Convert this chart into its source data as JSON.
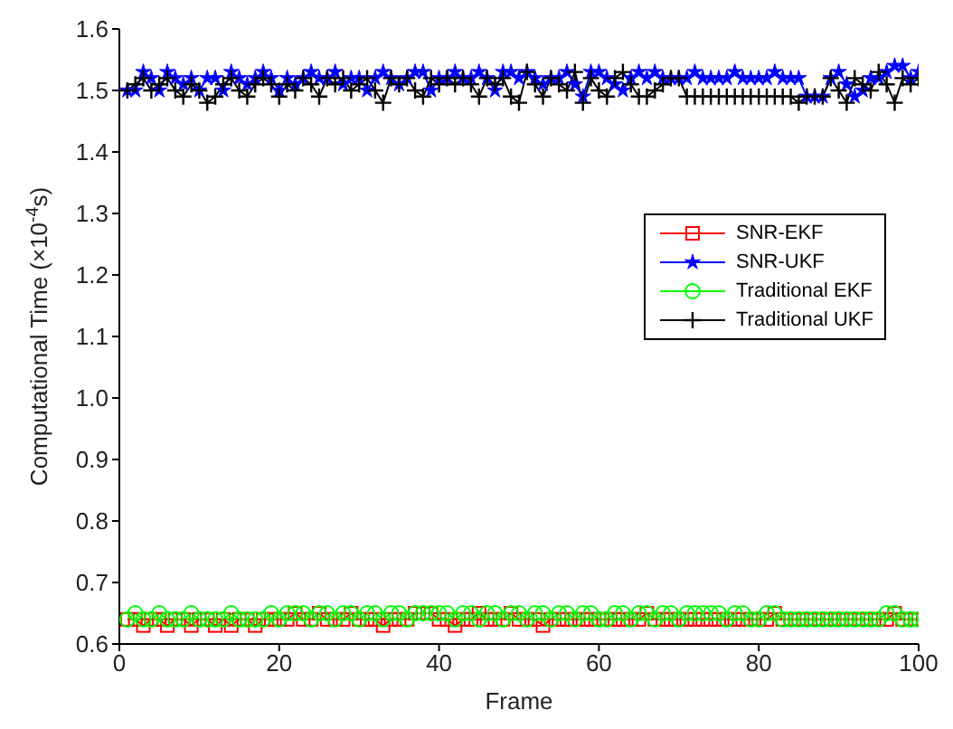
{
  "chart_data": {
    "type": "line",
    "xlabel": "Frame",
    "ylabel": "Computational Time  (×10$^{-4}$s)",
    "x": [
      1,
      2,
      3,
      4,
      5,
      6,
      7,
      8,
      9,
      10,
      11,
      12,
      13,
      14,
      15,
      16,
      17,
      18,
      19,
      20,
      21,
      22,
      23,
      24,
      25,
      26,
      27,
      28,
      29,
      30,
      31,
      32,
      33,
      34,
      35,
      36,
      37,
      38,
      39,
      40,
      41,
      42,
      43,
      44,
      45,
      46,
      47,
      48,
      49,
      50,
      51,
      52,
      53,
      54,
      55,
      56,
      57,
      58,
      59,
      60,
      61,
      62,
      63,
      64,
      65,
      66,
      67,
      68,
      69,
      70,
      71,
      72,
      73,
      74,
      75,
      76,
      77,
      78,
      79,
      80,
      81,
      82,
      83,
      84,
      85,
      86,
      87,
      88,
      89,
      90,
      91,
      92,
      93,
      94,
      95,
      96,
      97,
      98,
      99,
      100
    ],
    "series": [
      {
        "name": "SNR-EKF",
        "color": "#ff0000",
        "marker": "square",
        "values": [
          0.64,
          0.64,
          0.63,
          0.64,
          0.64,
          0.63,
          0.64,
          0.64,
          0.63,
          0.64,
          0.64,
          0.63,
          0.64,
          0.63,
          0.64,
          0.64,
          0.63,
          0.64,
          0.64,
          0.64,
          0.64,
          0.65,
          0.64,
          0.64,
          0.65,
          0.64,
          0.64,
          0.64,
          0.65,
          0.64,
          0.64,
          0.64,
          0.63,
          0.64,
          0.64,
          0.64,
          0.65,
          0.65,
          0.65,
          0.64,
          0.64,
          0.63,
          0.64,
          0.64,
          0.65,
          0.64,
          0.64,
          0.64,
          0.65,
          0.64,
          0.64,
          0.64,
          0.63,
          0.64,
          0.64,
          0.64,
          0.64,
          0.64,
          0.64,
          0.64,
          0.64,
          0.64,
          0.64,
          0.64,
          0.64,
          0.65,
          0.64,
          0.64,
          0.64,
          0.64,
          0.64,
          0.64,
          0.64,
          0.64,
          0.64,
          0.64,
          0.64,
          0.64,
          0.64,
          0.64,
          0.64,
          0.65,
          0.64,
          0.64,
          0.64,
          0.64,
          0.64,
          0.64,
          0.64,
          0.64,
          0.64,
          0.64,
          0.64,
          0.64,
          0.64,
          0.64,
          0.65,
          0.64,
          0.64,
          0.64
        ]
      },
      {
        "name": "SNR-UKF",
        "color": "#0000ff",
        "marker": "star",
        "values": [
          1.5,
          1.5,
          1.53,
          1.52,
          1.5,
          1.53,
          1.52,
          1.51,
          1.52,
          1.5,
          1.52,
          1.52,
          1.5,
          1.53,
          1.52,
          1.51,
          1.52,
          1.53,
          1.52,
          1.5,
          1.52,
          1.51,
          1.52,
          1.53,
          1.52,
          1.52,
          1.53,
          1.51,
          1.52,
          1.52,
          1.5,
          1.52,
          1.53,
          1.52,
          1.51,
          1.52,
          1.53,
          1.53,
          1.5,
          1.52,
          1.52,
          1.53,
          1.52,
          1.52,
          1.53,
          1.52,
          1.5,
          1.53,
          1.53,
          1.52,
          1.53,
          1.52,
          1.51,
          1.52,
          1.52,
          1.53,
          1.51,
          1.49,
          1.53,
          1.53,
          1.52,
          1.51,
          1.5,
          1.52,
          1.53,
          1.52,
          1.53,
          1.52,
          1.52,
          1.52,
          1.52,
          1.53,
          1.52,
          1.52,
          1.52,
          1.52,
          1.53,
          1.52,
          1.52,
          1.52,
          1.52,
          1.53,
          1.52,
          1.52,
          1.52,
          1.49,
          1.49,
          1.49,
          1.52,
          1.53,
          1.51,
          1.49,
          1.5,
          1.52,
          1.52,
          1.53,
          1.54,
          1.54,
          1.52,
          1.53
        ]
      },
      {
        "name": "Traditional EKF",
        "color": "#00ff00",
        "marker": "circle",
        "values": [
          0.64,
          0.65,
          0.64,
          0.64,
          0.65,
          0.64,
          0.64,
          0.64,
          0.65,
          0.64,
          0.64,
          0.64,
          0.64,
          0.65,
          0.64,
          0.64,
          0.64,
          0.64,
          0.65,
          0.64,
          0.65,
          0.65,
          0.65,
          0.64,
          0.65,
          0.65,
          0.64,
          0.65,
          0.65,
          0.64,
          0.65,
          0.65,
          0.64,
          0.65,
          0.65,
          0.64,
          0.65,
          0.65,
          0.65,
          0.65,
          0.65,
          0.64,
          0.65,
          0.65,
          0.64,
          0.65,
          0.65,
          0.64,
          0.65,
          0.65,
          0.64,
          0.65,
          0.65,
          0.64,
          0.65,
          0.65,
          0.64,
          0.65,
          0.65,
          0.64,
          0.64,
          0.65,
          0.65,
          0.64,
          0.65,
          0.65,
          0.64,
          0.65,
          0.65,
          0.64,
          0.65,
          0.65,
          0.65,
          0.65,
          0.65,
          0.64,
          0.65,
          0.65,
          0.64,
          0.64,
          0.65,
          0.65,
          0.64,
          0.64,
          0.64,
          0.64,
          0.64,
          0.64,
          0.64,
          0.64,
          0.64,
          0.64,
          0.64,
          0.64,
          0.64,
          0.65,
          0.65,
          0.64,
          0.64,
          0.64
        ]
      },
      {
        "name": "Traditional UKF",
        "color": "#000000",
        "marker": "cross",
        "values": [
          1.5,
          1.51,
          1.52,
          1.5,
          1.51,
          1.52,
          1.5,
          1.49,
          1.51,
          1.5,
          1.48,
          1.49,
          1.51,
          1.52,
          1.5,
          1.49,
          1.51,
          1.52,
          1.51,
          1.49,
          1.51,
          1.5,
          1.52,
          1.51,
          1.49,
          1.52,
          1.51,
          1.52,
          1.5,
          1.51,
          1.52,
          1.5,
          1.48,
          1.52,
          1.51,
          1.52,
          1.5,
          1.49,
          1.52,
          1.51,
          1.52,
          1.51,
          1.52,
          1.51,
          1.49,
          1.52,
          1.51,
          1.52,
          1.49,
          1.48,
          1.53,
          1.51,
          1.49,
          1.52,
          1.51,
          1.5,
          1.53,
          1.48,
          1.52,
          1.5,
          1.49,
          1.52,
          1.53,
          1.51,
          1.49,
          1.49,
          1.5,
          1.51,
          1.52,
          1.52,
          1.49,
          1.49,
          1.49,
          1.49,
          1.49,
          1.49,
          1.49,
          1.49,
          1.49,
          1.49,
          1.49,
          1.49,
          1.49,
          1.49,
          1.48,
          1.49,
          1.49,
          1.49,
          1.52,
          1.5,
          1.48,
          1.52,
          1.51,
          1.5,
          1.53,
          1.51,
          1.48,
          1.52,
          1.51,
          1.52
        ]
      }
    ],
    "xlim": [
      0,
      100
    ],
    "xticks": [
      0,
      20,
      40,
      60,
      80,
      100
    ],
    "ylim": [
      0.6,
      1.6
    ],
    "yticks": [
      0.6,
      0.7,
      0.8,
      0.9,
      {
        "value": 1.0,
        "label": "1.0"
      },
      1.1,
      1.2,
      1.3,
      1.4,
      1.5,
      1.6
    ],
    "grid": false,
    "legend": "right",
    "line_style": "solid"
  }
}
